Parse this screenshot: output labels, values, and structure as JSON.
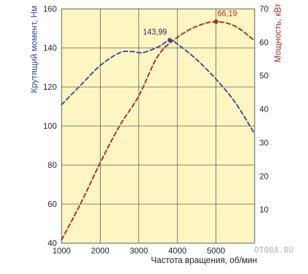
{
  "chart_data": {
    "type": "line",
    "x_label": "Частота вращения, об/мин",
    "y_left_label": "Крутящий момент, Нм",
    "y_right_label": "Мощность, кВт",
    "x_range": [
      1000,
      6000
    ],
    "y_left_range": [
      40,
      160
    ],
    "y_right_range": [
      0,
      70
    ],
    "x_ticks": [
      "1000",
      "2000",
      "3000",
      "4000",
      "5000"
    ],
    "y_left_ticks": [
      "40",
      "60",
      "80",
      "100",
      "120",
      "140",
      "160"
    ],
    "y_right_ticks": [
      "10",
      "20",
      "30",
      "40",
      "50",
      "60",
      "70"
    ],
    "grid": true,
    "background_color": "#fdf6c2",
    "series": [
      {
        "axis": "left",
        "color": "#3a4a9a",
        "style": "dashed",
        "points": [
          [
            1000,
            111
          ],
          [
            1500,
            121
          ],
          [
            2000,
            131
          ],
          [
            2500,
            137.5
          ],
          [
            2800,
            138.2
          ],
          [
            3100,
            137.6
          ],
          [
            3500,
            140.5
          ],
          [
            3800,
            143.99
          ],
          [
            4000,
            142
          ],
          [
            4500,
            134
          ],
          [
            5000,
            124
          ],
          [
            5500,
            112
          ],
          [
            6000,
            96
          ]
        ],
        "peak": {
          "x": 3800,
          "y": 143.99,
          "label": "143,99"
        }
      },
      {
        "axis": "right",
        "color": "#a8282a",
        "style": "dashed",
        "points": [
          [
            1000,
            1
          ],
          [
            1500,
            12
          ],
          [
            2000,
            24
          ],
          [
            2500,
            35
          ],
          [
            3000,
            44
          ],
          [
            3500,
            56
          ],
          [
            4000,
            61.5
          ],
          [
            4500,
            64.8
          ],
          [
            5000,
            66.19
          ],
          [
            5500,
            64.8
          ],
          [
            6000,
            60.5
          ]
        ],
        "peak": {
          "x": 5000,
          "y": 66.19,
          "label": "66,19"
        }
      }
    ]
  },
  "watermark": "OTOBA.RU"
}
